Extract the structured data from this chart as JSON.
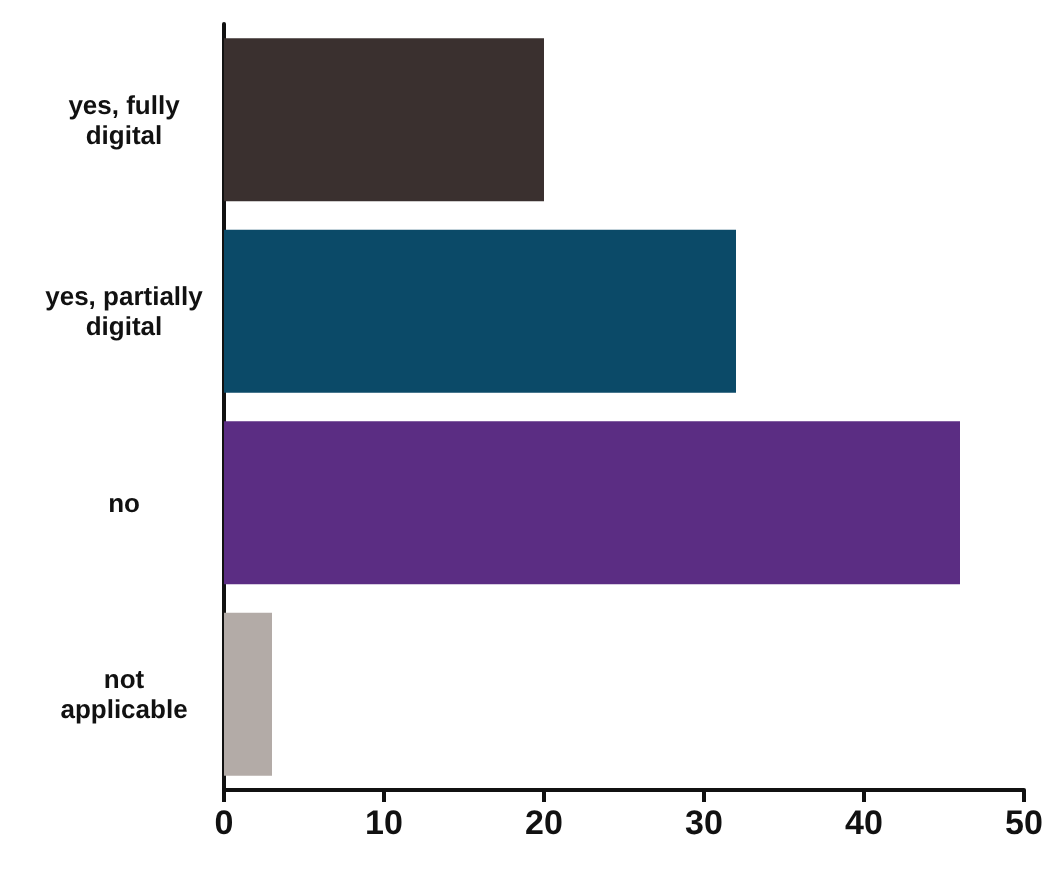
{
  "chart_data": {
    "type": "bar",
    "orientation": "horizontal",
    "categories": [
      "yes, fully\ndigital",
      "yes, partially\ndigital",
      "no",
      "not\napplicable"
    ],
    "values": [
      20,
      32,
      46,
      3
    ],
    "colors": [
      "#3a302f",
      "#0b4a68",
      "#5b2d83",
      "#b3aba7"
    ],
    "xlim": [
      0,
      50
    ],
    "xticks": [
      0,
      10,
      20,
      30,
      40,
      50
    ],
    "grid": false
  }
}
